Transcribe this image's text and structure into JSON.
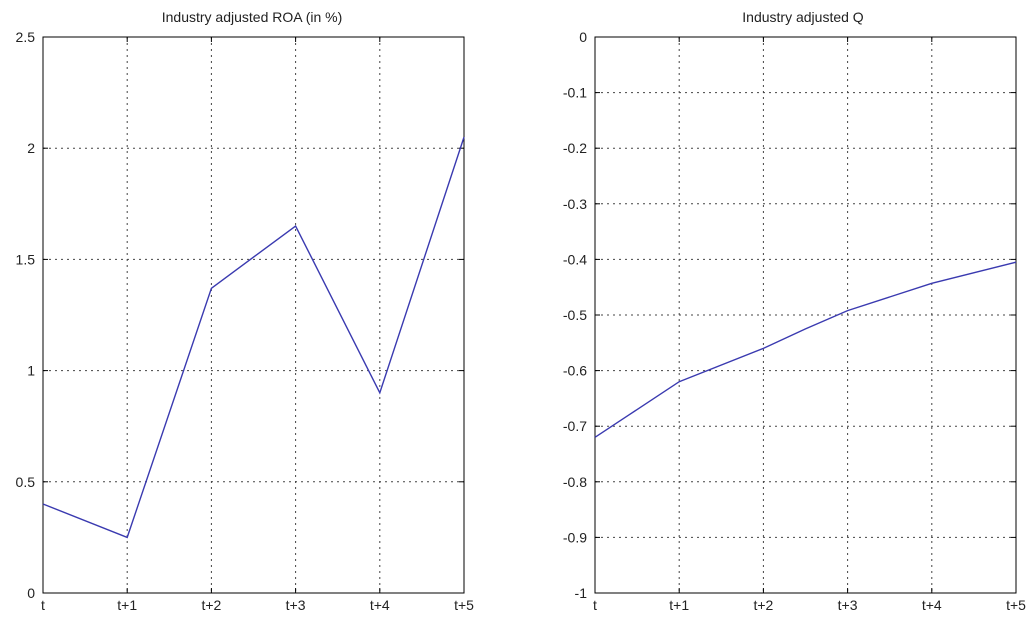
{
  "chart_data": [
    {
      "type": "line",
      "title": "Industry adjusted ROA (in %)",
      "xlabel": "",
      "ylabel": "",
      "categories": [
        "t",
        "t+1",
        "t+2",
        "t+3",
        "t+4",
        "t+5"
      ],
      "values": [
        0.4,
        0.25,
        1.37,
        1.65,
        0.9,
        2.05
      ],
      "ylim": [
        0,
        2.5
      ],
      "yticks": [
        0,
        0.5,
        1,
        1.5,
        2,
        2.5
      ],
      "ytick_labels": [
        "0",
        "0.5",
        "1",
        "1.5",
        "2",
        "2.5"
      ],
      "grid": true,
      "line_color": "#3a3ab0"
    },
    {
      "type": "line",
      "title": "Industry adjusted Q",
      "xlabel": "",
      "ylabel": "",
      "x": [
        0,
        0.4,
        1,
        2,
        2.5,
        3,
        4,
        5
      ],
      "categories": [
        "t",
        "t+1",
        "t+2",
        "t+3",
        "t+4",
        "t+5"
      ],
      "values": [
        -0.72,
        -0.68,
        -0.62,
        -0.56,
        -0.525,
        -0.492,
        -0.443,
        -0.405
      ],
      "ylim": [
        -1,
        0
      ],
      "yticks": [
        -1,
        -0.9,
        -0.8,
        -0.7,
        -0.6,
        -0.5,
        -0.4,
        -0.3,
        -0.2,
        -0.1,
        0
      ],
      "ytick_labels": [
        "-1",
        "-0.9",
        "-0.8",
        "-0.7",
        "-0.6",
        "-0.5",
        "-0.4",
        "-0.3",
        "-0.2",
        "-0.1",
        "0"
      ],
      "grid": true,
      "line_color": "#3a3ab0"
    }
  ]
}
